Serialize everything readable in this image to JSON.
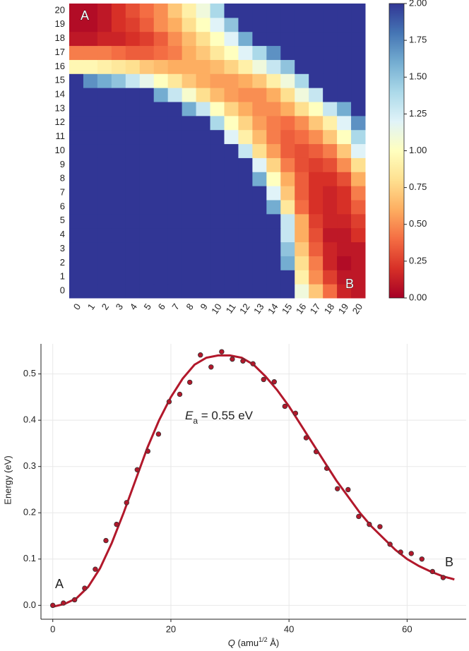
{
  "chart_data": [
    {
      "type": "heatmap",
      "x": [
        0,
        1,
        2,
        3,
        4,
        5,
        6,
        7,
        8,
        9,
        10,
        11,
        12,
        13,
        14,
        15,
        16,
        17,
        18,
        19,
        20
      ],
      "y": [
        0,
        1,
        2,
        3,
        4,
        5,
        6,
        7,
        8,
        9,
        10,
        11,
        12,
        13,
        14,
        15,
        16,
        17,
        18,
        19,
        20
      ],
      "z": [
        [
          2,
          2,
          2,
          2,
          2,
          2,
          2,
          2,
          2,
          2,
          2,
          2,
          2,
          2,
          2,
          2,
          1.1,
          0.7,
          0.4,
          0.15,
          0.1
        ],
        [
          2,
          2,
          2,
          2,
          2,
          2,
          2,
          2,
          2,
          2,
          2,
          2,
          2,
          2,
          2,
          2,
          0.9,
          0.5,
          0.25,
          0.1,
          0.1
        ],
        [
          2,
          2,
          2,
          2,
          2,
          2,
          2,
          2,
          2,
          2,
          2,
          2,
          2,
          2,
          2,
          1.6,
          0.8,
          0.45,
          0.15,
          0.05,
          0.1
        ],
        [
          2,
          2,
          2,
          2,
          2,
          2,
          2,
          2,
          2,
          2,
          2,
          2,
          2,
          2,
          2,
          1.5,
          0.7,
          0.35,
          0.15,
          0.1,
          0.1
        ],
        [
          2,
          2,
          2,
          2,
          2,
          2,
          2,
          2,
          2,
          2,
          2,
          2,
          2,
          2,
          2,
          1.3,
          0.6,
          0.3,
          0.1,
          0.1,
          0.2
        ],
        [
          2,
          2,
          2,
          2,
          2,
          2,
          2,
          2,
          2,
          2,
          2,
          2,
          2,
          2,
          2,
          1.3,
          0.6,
          0.25,
          0.15,
          0.15,
          0.25
        ],
        [
          2,
          2,
          2,
          2,
          2,
          2,
          2,
          2,
          2,
          2,
          2,
          2,
          2,
          2,
          1.6,
          0.85,
          0.4,
          0.2,
          0.15,
          0.2,
          0.35
        ],
        [
          2,
          2,
          2,
          2,
          2,
          2,
          2,
          2,
          2,
          2,
          2,
          2,
          2,
          2,
          1.2,
          0.7,
          0.35,
          0.2,
          0.15,
          0.2,
          0.45
        ],
        [
          2,
          2,
          2,
          2,
          2,
          2,
          2,
          2,
          2,
          2,
          2,
          2,
          2,
          1.6,
          1.0,
          0.6,
          0.35,
          0.2,
          0.2,
          0.3,
          0.6
        ],
        [
          2,
          2,
          2,
          2,
          2,
          2,
          2,
          2,
          2,
          2,
          2,
          2,
          2,
          1.2,
          0.75,
          0.45,
          0.3,
          0.25,
          0.3,
          0.5,
          0.8
        ],
        [
          2,
          2,
          2,
          2,
          2,
          2,
          2,
          2,
          2,
          2,
          2,
          2,
          1.3,
          0.8,
          0.55,
          0.35,
          0.3,
          0.35,
          0.45,
          0.7,
          1.2
        ],
        [
          2,
          2,
          2,
          2,
          2,
          2,
          2,
          2,
          2,
          2,
          2,
          1.2,
          0.9,
          0.65,
          0.45,
          0.35,
          0.4,
          0.5,
          0.7,
          1.0,
          1.4
        ],
        [
          2,
          2,
          2,
          2,
          2,
          2,
          2,
          2,
          2,
          2,
          1.4,
          1.0,
          0.75,
          0.55,
          0.45,
          0.4,
          0.5,
          0.7,
          0.9,
          1.2,
          1.7
        ],
        [
          2,
          2,
          2,
          2,
          2,
          2,
          2,
          2,
          1.6,
          1.3,
          1.0,
          0.75,
          0.6,
          0.5,
          0.5,
          0.6,
          0.8,
          1.0,
          1.3,
          1.6,
          2
        ],
        [
          2,
          2,
          2,
          2,
          2,
          2,
          1.6,
          1.3,
          1.05,
          0.8,
          0.65,
          0.55,
          0.5,
          0.5,
          0.6,
          0.8,
          1.1,
          1.3,
          2,
          2,
          2
        ],
        [
          2,
          1.7,
          1.6,
          1.5,
          1.3,
          1.15,
          1.0,
          0.85,
          0.7,
          0.6,
          0.55,
          0.55,
          0.6,
          0.7,
          0.9,
          1.1,
          1.4,
          2,
          2,
          2,
          2
        ],
        [
          0.95,
          0.95,
          0.9,
          0.85,
          0.8,
          0.7,
          0.65,
          0.6,
          0.6,
          0.6,
          0.65,
          0.75,
          0.9,
          1.1,
          1.3,
          1.5,
          2,
          2,
          2,
          2,
          2
        ],
        [
          0.45,
          0.45,
          0.45,
          0.4,
          0.35,
          0.35,
          0.4,
          0.45,
          0.6,
          0.7,
          0.85,
          1.0,
          1.2,
          1.4,
          1.7,
          2,
          2,
          2,
          2,
          2,
          2
        ],
        [
          0.1,
          0.1,
          0.15,
          0.15,
          0.2,
          0.25,
          0.35,
          0.5,
          0.65,
          0.8,
          1.0,
          1.2,
          1.6,
          2,
          2,
          2,
          2,
          2,
          2,
          2,
          2
        ],
        [
          0.05,
          0.05,
          0.1,
          0.2,
          0.25,
          0.35,
          0.5,
          0.6,
          0.8,
          1.0,
          1.2,
          1.5,
          2,
          2,
          2,
          2,
          2,
          2,
          2,
          2,
          2
        ],
        [
          0.05,
          0.05,
          0.1,
          0.2,
          0.3,
          0.4,
          0.5,
          0.7,
          0.9,
          1.1,
          1.4,
          2,
          2,
          2,
          2,
          2,
          2,
          2,
          2,
          2,
          2
        ]
      ],
      "zlim": [
        0,
        2
      ],
      "colors": [
        "#a50026",
        "#d73027",
        "#f46d43",
        "#fdae61",
        "#fee090",
        "#ffffbf",
        "#e0f3f8",
        "#abd9e9",
        "#74add1",
        "#4575b4",
        "#313695"
      ],
      "zticks": [
        {
          "value": 0,
          "label": "0.00"
        },
        {
          "value": 0.25,
          "label": "0.25"
        },
        {
          "value": 0.5,
          "label": "0.50"
        },
        {
          "value": 0.75,
          "label": "0.75"
        },
        {
          "value": 1,
          "label": "1.00"
        },
        {
          "value": 1.25,
          "label": "1.25"
        },
        {
          "value": 1.5,
          "label": "1.50"
        },
        {
          "value": 1.75,
          "label": "1.75"
        },
        {
          "value": 2,
          "label": "2.00"
        }
      ],
      "annotations": [
        "A",
        "B"
      ]
    },
    {
      "type": "scatter",
      "points": {
        "color": "#b2182b",
        "x": [
          0,
          1.8,
          3.7,
          5.4,
          7.2,
          9,
          10.8,
          12.5,
          14.3,
          16.1,
          17.9,
          19.7,
          21.5,
          23.2,
          25,
          26.8,
          28.6,
          30.4,
          32.2,
          33.9,
          35.7,
          37.5,
          39.3,
          41.1,
          42.9,
          44.6,
          46.4,
          48.2,
          50,
          51.8,
          53.6,
          55.4,
          57.1,
          58.9,
          60.7,
          62.5,
          64.3,
          66.1
        ],
        "y": [
          0,
          0.005,
          0.012,
          0.037,
          0.078,
          0.14,
          0.175,
          0.222,
          0.293,
          0.333,
          0.37,
          0.44,
          0.456,
          0.482,
          0.541,
          0.515,
          0.548,
          0.532,
          0.528,
          0.522,
          0.488,
          0.483,
          0.43,
          0.415,
          0.362,
          0.332,
          0.296,
          0.252,
          0.25,
          0.192,
          0.175,
          0.17,
          0.132,
          0.115,
          0.112,
          0.1,
          0.073,
          0.06
        ]
      },
      "curve": {
        "color": "#b2182b",
        "x": [
          0,
          2,
          4,
          6,
          8,
          10,
          12,
          14,
          16,
          18,
          20,
          22,
          24,
          26,
          28,
          30,
          32,
          34,
          36,
          38,
          40,
          42,
          44,
          46,
          48,
          50,
          52,
          54,
          56,
          58,
          60,
          62,
          64,
          66,
          68
        ],
        "y": [
          -0.003,
          0.003,
          0.015,
          0.04,
          0.08,
          0.135,
          0.2,
          0.27,
          0.34,
          0.4,
          0.45,
          0.49,
          0.52,
          0.535,
          0.54,
          0.54,
          0.535,
          0.52,
          0.495,
          0.465,
          0.43,
          0.39,
          0.35,
          0.31,
          0.27,
          0.235,
          0.2,
          0.17,
          0.145,
          0.12,
          0.1,
          0.085,
          0.073,
          0.063,
          0.056
        ]
      },
      "xlim": [
        -2,
        70
      ],
      "ylim": [
        -0.03,
        0.565
      ],
      "xticks": [
        0,
        20,
        40,
        60
      ],
      "yticks": [
        {
          "value": 0,
          "label": "0.0"
        },
        0.1,
        0.2,
        0.3,
        0.4,
        0.5
      ],
      "grid": true,
      "xlabel": {
        "symbol": "Q",
        "pre": " (amu",
        "sup": "1/2",
        "post": " Å)"
      },
      "ylabel": "Energy  (eV)",
      "energy_label": {
        "symbol": "E",
        "sub": "a",
        "text": " = 0.55 eV"
      },
      "annotations": [
        "A",
        "B"
      ]
    }
  ]
}
